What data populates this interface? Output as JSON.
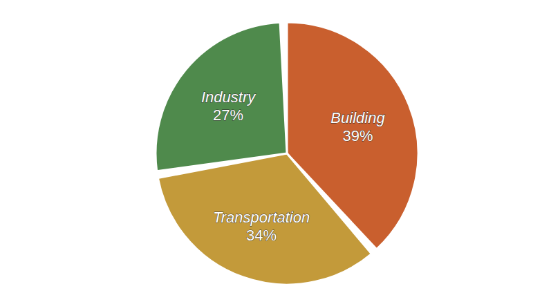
{
  "chart_data": {
    "type": "pie",
    "categories": [
      "Building",
      "Transportation",
      "Industry"
    ],
    "values": [
      39,
      34,
      27
    ],
    "value_labels": [
      "39%",
      "34%",
      "27%"
    ],
    "colors": [
      "#c95f2e",
      "#c39a3a",
      "#4f8a4c"
    ],
    "data_labels": true
  }
}
